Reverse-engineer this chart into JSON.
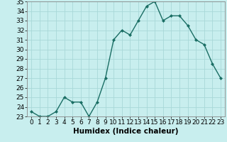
{
  "title": "",
  "xlabel": "Humidex (Indice chaleur)",
  "ylabel": "",
  "x": [
    0,
    1,
    2,
    3,
    4,
    5,
    6,
    7,
    8,
    9,
    10,
    11,
    12,
    13,
    14,
    15,
    16,
    17,
    18,
    19,
    20,
    21,
    22,
    23
  ],
  "y": [
    23.5,
    23.0,
    23.0,
    23.5,
    25.0,
    24.5,
    24.5,
    23.0,
    24.5,
    27.0,
    31.0,
    32.0,
    31.5,
    33.0,
    34.5,
    35.0,
    33.0,
    33.5,
    33.5,
    32.5,
    31.0,
    30.5,
    28.5,
    27.0
  ],
  "ylim": [
    23,
    35
  ],
  "yticks": [
    23,
    24,
    25,
    26,
    27,
    28,
    29,
    30,
    31,
    32,
    33,
    34,
    35
  ],
  "bg_color": "#c8eeee",
  "grid_color": "#a8d8d8",
  "line_color": "#1a6e64",
  "marker": "D",
  "marker_size": 2.0,
  "line_width": 1.0,
  "xlabel_fontsize": 7.5,
  "tick_fontsize": 6.5
}
